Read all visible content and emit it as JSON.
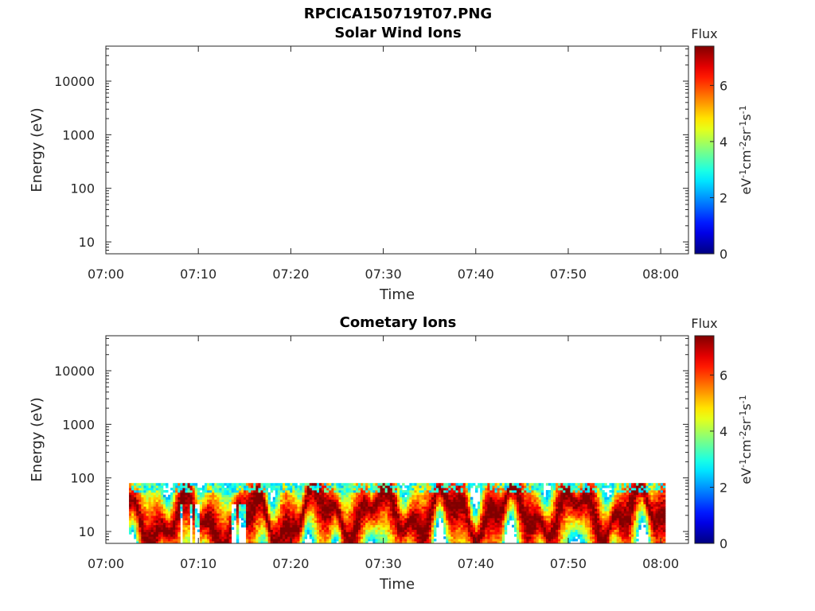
{
  "figure_title": "RPCICA150719T07.PNG",
  "chart_data": [
    {
      "type": "heatmap",
      "title": "Solar Wind Ions",
      "xlabel": "Time",
      "ylabel": "Energy (eV)",
      "y_scale": "log",
      "x_range": [
        "07:00",
        "08:03"
      ],
      "y_range_ev": [
        6,
        45000
      ],
      "x_ticks": [
        "07:00",
        "07:10",
        "07:20",
        "07:30",
        "07:40",
        "07:50",
        "08:00"
      ],
      "y_ticks": [
        "10",
        "100",
        "1000",
        "10000"
      ],
      "colorbar": {
        "title": "Flux",
        "label": "eV-1cm-2sr-1s-1",
        "range": [
          0,
          7.4
        ],
        "ticks": [
          "0",
          "2",
          "4",
          "6"
        ]
      },
      "data": "empty"
    },
    {
      "type": "heatmap",
      "title": "Cometary Ions",
      "xlabel": "Time",
      "ylabel": "Energy (eV)",
      "y_scale": "log",
      "x_range": [
        "07:00",
        "08:03"
      ],
      "y_range_ev": [
        6,
        45000
      ],
      "x_ticks": [
        "07:00",
        "07:10",
        "07:20",
        "07:30",
        "07:40",
        "07:50",
        "08:00"
      ],
      "y_ticks": [
        "10",
        "100",
        "1000",
        "10000"
      ],
      "colorbar": {
        "title": "Flux",
        "label": "eV-1cm-2sr-1s-1",
        "range": [
          0,
          7.4
        ],
        "ticks": [
          "0",
          "2",
          "4",
          "6"
        ]
      },
      "data_time_range": [
        "07:02:30",
        "08:00:30"
      ],
      "data_energy_range_ev": [
        6,
        80
      ]
    }
  ]
}
